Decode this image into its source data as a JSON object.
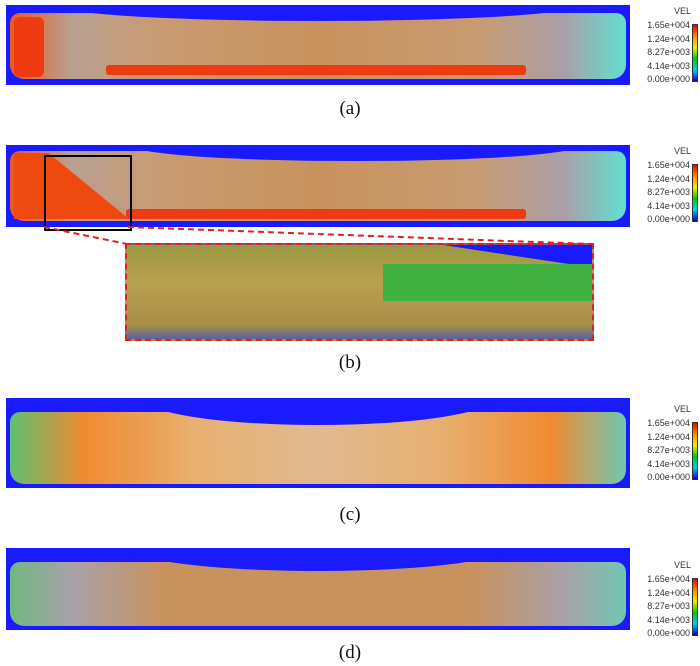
{
  "legend": {
    "title": "VEL",
    "ticks": [
      "1.65e+004",
      "1.24e+004",
      "8.27e+003",
      "4.14e+003",
      "0.00e+000"
    ],
    "colormap": [
      "#e00000",
      "#ff8800",
      "#eeee00",
      "#00cc00",
      "#00ccff",
      "#0000cc"
    ]
  },
  "panels": [
    {
      "label": "(a)"
    },
    {
      "label": "(b)"
    },
    {
      "label": "(c)"
    },
    {
      "label": "(d)"
    }
  ],
  "colors": {
    "background": "#1a1aff",
    "high": "#ee3a10",
    "mid": "#c8925e",
    "zoom_outline": "#e02020"
  }
}
